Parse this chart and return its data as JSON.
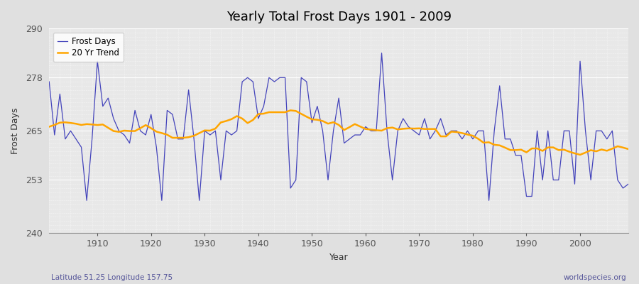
{
  "title": "Yearly Total Frost Days 1901 - 2009",
  "xlabel": "Year",
  "ylabel": "Frost Days",
  "subtitle_left": "Latitude 51.25 Longitude 157.75",
  "subtitle_right": "worldspecies.org",
  "ylim": [
    240,
    290
  ],
  "yticks": [
    240,
    253,
    265,
    278,
    290
  ],
  "xticks": [
    1910,
    1920,
    1930,
    1940,
    1950,
    1960,
    1970,
    1980,
    1990,
    2000
  ],
  "legend_labels": [
    "Frost Days",
    "20 Yr Trend"
  ],
  "line_color": "#4444bb",
  "trend_color": "#FFA500",
  "fig_bg_color": "#e0e0e0",
  "plot_bg_color": "#e8e8e8",
  "grid_color": "#ffffff",
  "frost_days": [
    277,
    264,
    274,
    263,
    265,
    263,
    261,
    248,
    263,
    282,
    271,
    273,
    268,
    265,
    264,
    262,
    270,
    265,
    264,
    269,
    261,
    248,
    270,
    269,
    263,
    263,
    275,
    263,
    248,
    265,
    264,
    265,
    253,
    265,
    264,
    265,
    277,
    278,
    277,
    268,
    271,
    278,
    277,
    278,
    278,
    251,
    253,
    278,
    277,
    267,
    271,
    265,
    253,
    265,
    273,
    262,
    263,
    264,
    264,
    266,
    265,
    265,
    284,
    265,
    253,
    265,
    268,
    266,
    265,
    264,
    268,
    263,
    265,
    268,
    264,
    265,
    265,
    263,
    265,
    263,
    265,
    265,
    248,
    265,
    276,
    263,
    263,
    259,
    259,
    249,
    249,
    265,
    253,
    265,
    253,
    253,
    265,
    265,
    252,
    282,
    265,
    253,
    265,
    265,
    263,
    265,
    253,
    251,
    252
  ]
}
